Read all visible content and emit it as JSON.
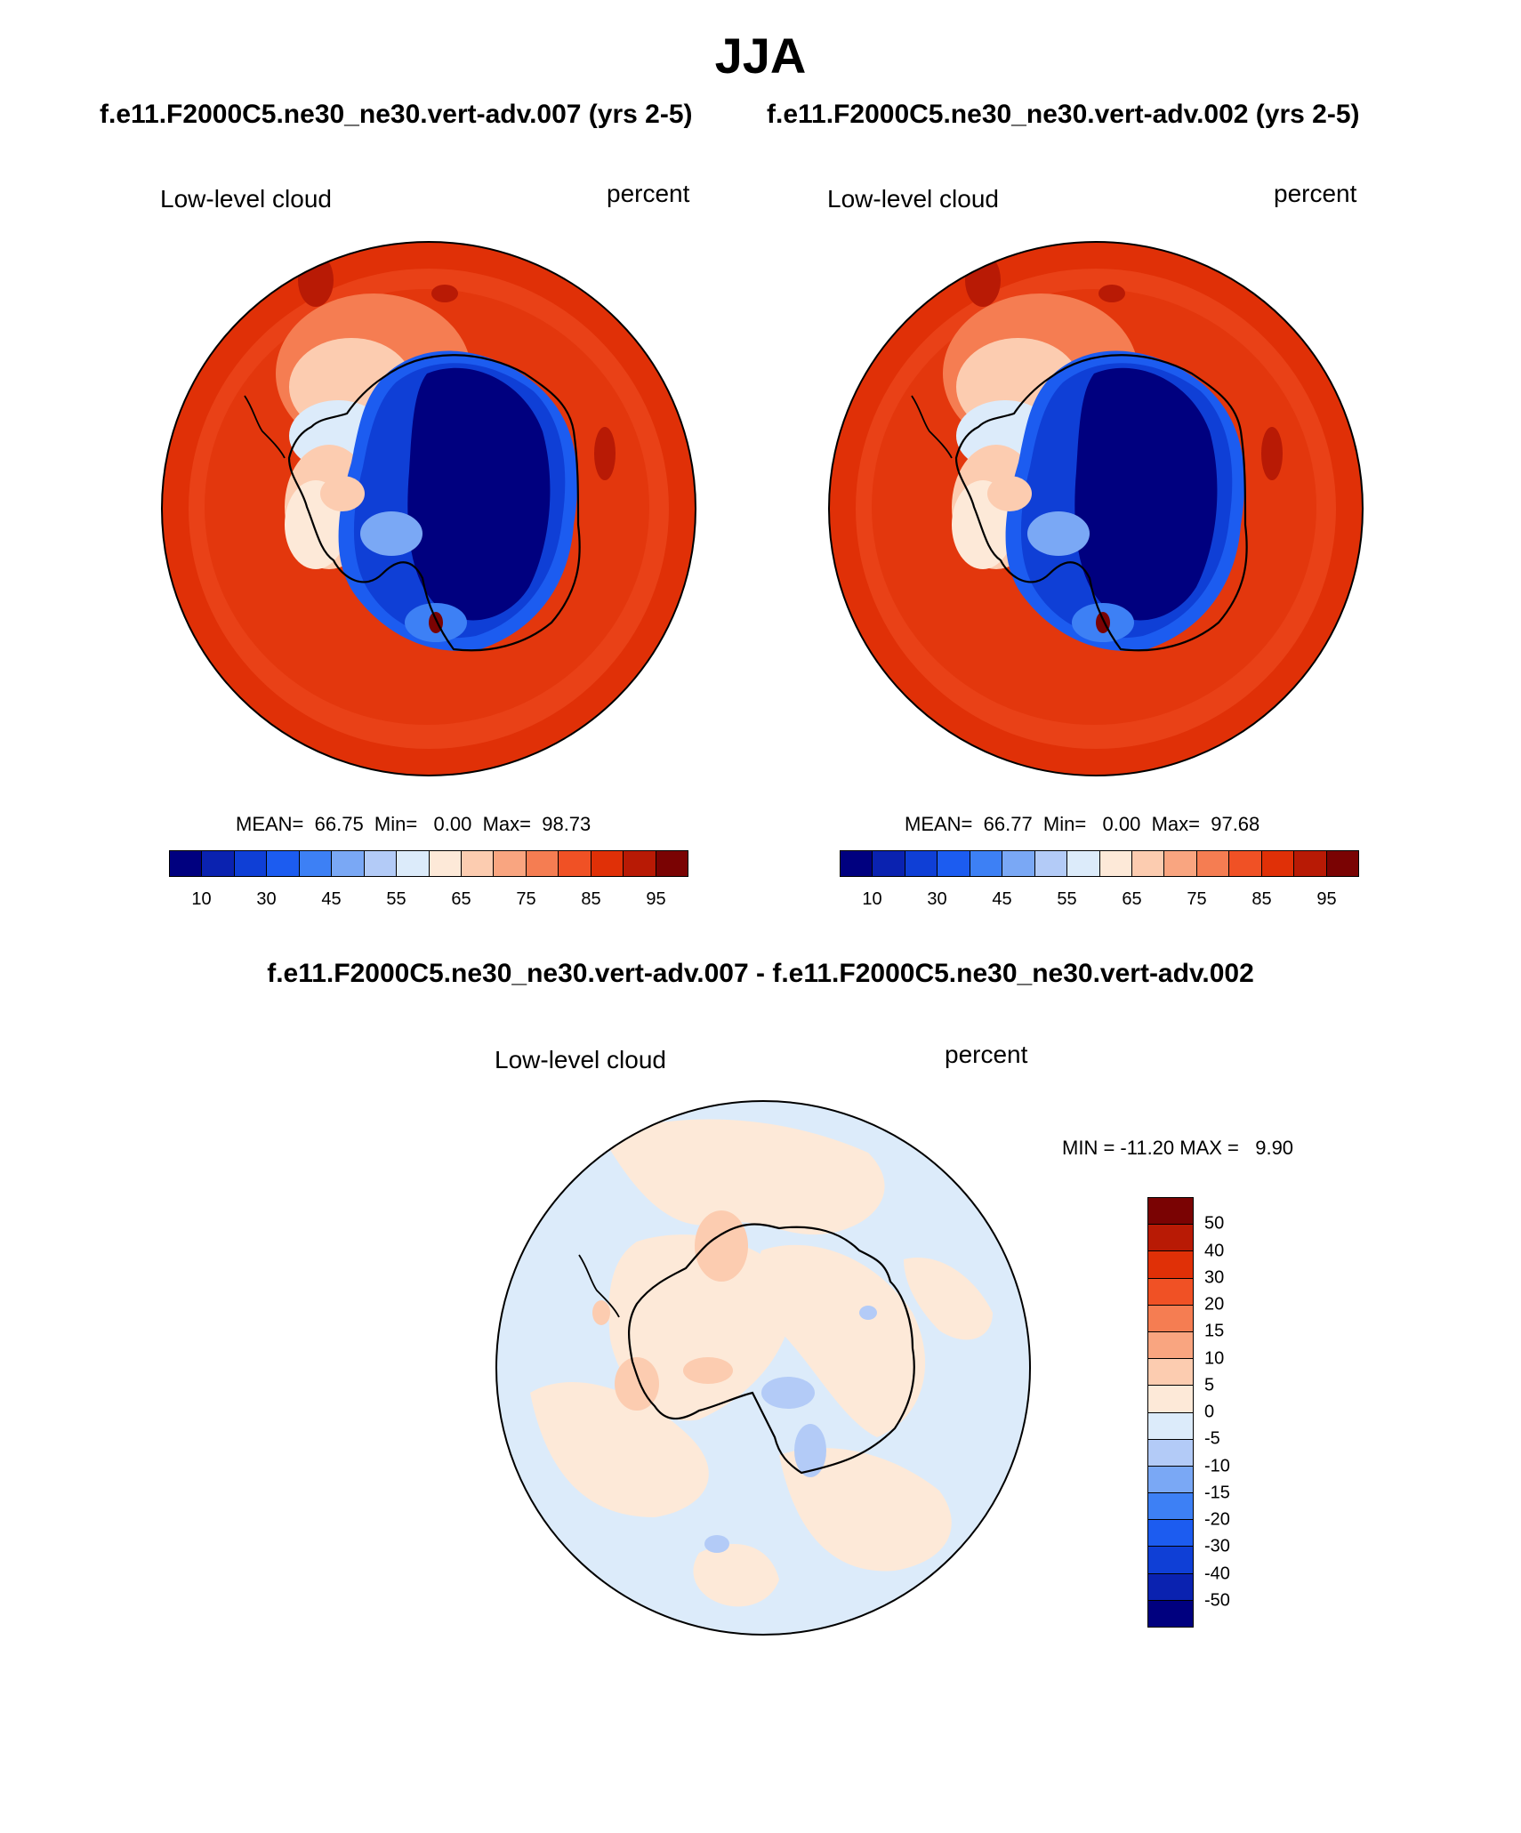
{
  "title": "JJA",
  "panels": [
    {
      "case": "f.e11.F2000C5.ne30_ne30.vert-adv.007 (yrs 2-5)",
      "variable": "Low-level cloud",
      "units": "percent",
      "stats": "MEAN=  66.75  Min=   0.00  Max=  98.73",
      "colorbar": {
        "colors": [
          "#00007f",
          "#0a22b0",
          "#0f3fd6",
          "#1c5cf0",
          "#3d80f5",
          "#7aa8f5",
          "#b3cbf7",
          "#dcebfa",
          "#fde9d8",
          "#fcccb0",
          "#f9a580",
          "#f57d52",
          "#f05125",
          "#e03007",
          "#b81a05",
          "#7a0303"
        ],
        "labels": [
          "10",
          "30",
          "45",
          "55",
          "65",
          "75",
          "85",
          "95"
        ]
      }
    },
    {
      "case": "f.e11.F2000C5.ne30_ne30.vert-adv.002 (yrs 2-5)",
      "variable": "Low-level cloud",
      "units": "percent",
      "stats": "MEAN=  66.77  Min=   0.00  Max=  97.68",
      "colorbar": {
        "colors": [
          "#00007f",
          "#0a22b0",
          "#0f3fd6",
          "#1c5cf0",
          "#3d80f5",
          "#7aa8f5",
          "#b3cbf7",
          "#dcebfa",
          "#fde9d8",
          "#fcccb0",
          "#f9a580",
          "#f57d52",
          "#f05125",
          "#e03007",
          "#b81a05",
          "#7a0303"
        ],
        "labels": [
          "10",
          "30",
          "45",
          "55",
          "65",
          "75",
          "85",
          "95"
        ]
      }
    }
  ],
  "difference": {
    "title": "f.e11.F2000C5.ne30_ne30.vert-adv.007 - f.e11.F2000C5.ne30_ne30.vert-adv.002",
    "variable": "Low-level cloud",
    "units": "percent",
    "stats": "MIN = -11.20 MAX =   9.90",
    "colorbar": {
      "colors": [
        "#7a0303",
        "#b81a05",
        "#e03007",
        "#f05125",
        "#f57d52",
        "#f9a580",
        "#fcccb0",
        "#fde9d8",
        "#dcebfa",
        "#b3cbf7",
        "#7aa8f5",
        "#3d80f5",
        "#1c5cf0",
        "#0f3fd6",
        "#0a22b0",
        "#00007f"
      ],
      "labels": [
        "50",
        "40",
        "30",
        "20",
        "15",
        "10",
        "5",
        "0",
        "-5",
        "-10",
        "-15",
        "-20",
        "-30",
        "-40",
        "-50"
      ]
    }
  }
}
